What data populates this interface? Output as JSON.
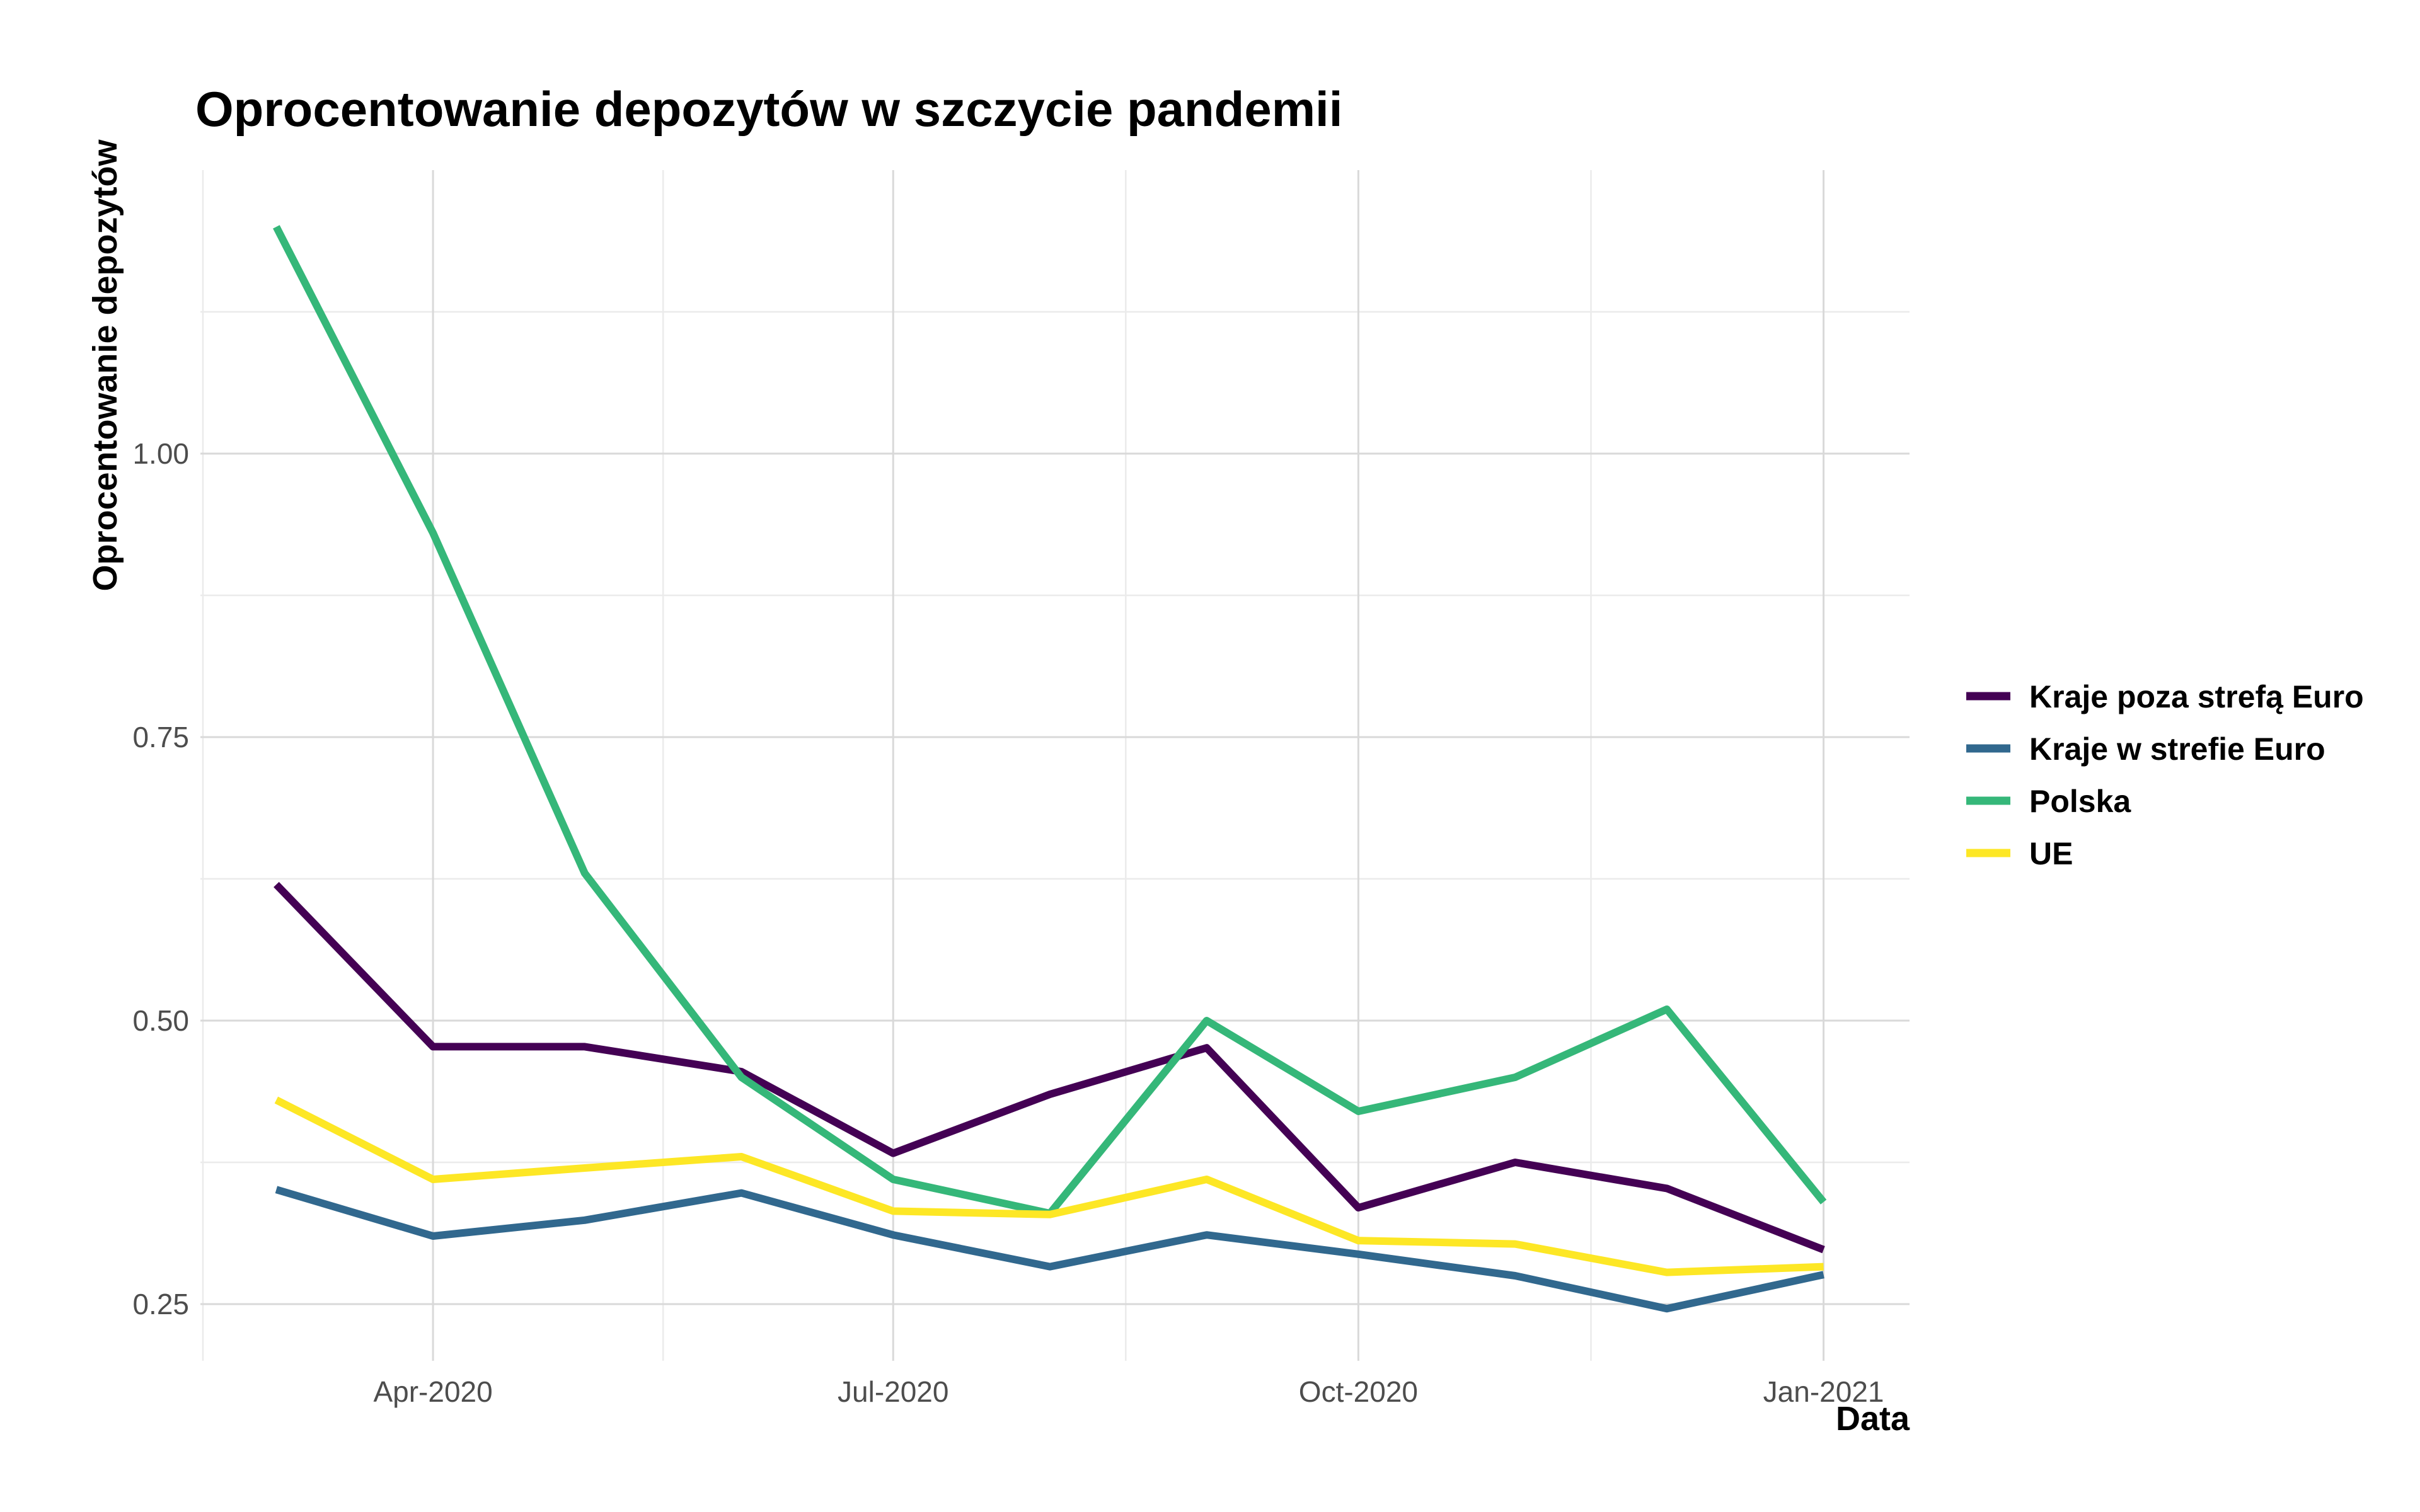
{
  "chart_data": {
    "type": "line",
    "title": "Oprocentowanie depozytów w szczycie pandemii",
    "xlabel": "Data",
    "ylabel": "Oprocentowanie depozytów",
    "x": [
      "2020-03-01",
      "2020-04-01",
      "2020-05-01",
      "2020-06-01",
      "2020-07-01",
      "2020-08-01",
      "2020-09-01",
      "2020-10-01",
      "2020-11-01",
      "2020-12-01",
      "2021-01-01"
    ],
    "x_ticks": [
      {
        "date": "2020-04-01",
        "label": "Apr-2020"
      },
      {
        "date": "2020-07-01",
        "label": "Jul-2020"
      },
      {
        "date": "2020-10-01",
        "label": "Oct-2020"
      },
      {
        "date": "2021-01-01",
        "label": "Jan-2021"
      }
    ],
    "y_ticks": [
      {
        "value": 0.25,
        "label": "0.25"
      },
      {
        "value": 0.5,
        "label": "0.50"
      },
      {
        "value": 0.75,
        "label": "0.75"
      },
      {
        "value": 1.0,
        "label": "1.00"
      }
    ],
    "xlim": [
      "2020-02-15",
      "2021-01-18"
    ],
    "ylim": [
      0.2,
      1.25
    ],
    "grid": true,
    "legend_position": "right",
    "series": [
      {
        "name": "Kraje poza strefą Euro",
        "color": "#440154",
        "values": [
          0.62,
          0.477,
          0.477,
          0.455,
          0.383,
          0.435,
          0.476,
          0.335,
          0.375,
          0.352,
          0.298
        ]
      },
      {
        "name": "Kraje w strefie Euro",
        "color": "#31688e",
        "values": [
          0.351,
          0.31,
          0.324,
          0.348,
          0.311,
          0.283,
          0.311,
          0.294,
          0.275,
          0.246,
          0.276
        ]
      },
      {
        "name": "Polska",
        "color": "#35b779",
        "values": [
          1.2,
          0.93,
          0.63,
          0.45,
          0.36,
          0.33,
          0.5,
          0.42,
          0.45,
          0.51,
          0.34
        ]
      },
      {
        "name": "UE",
        "color": "#fde725",
        "values": [
          0.43,
          0.36,
          0.37,
          0.38,
          0.332,
          0.329,
          0.36,
          0.306,
          0.303,
          0.278,
          0.283
        ]
      }
    ]
  }
}
